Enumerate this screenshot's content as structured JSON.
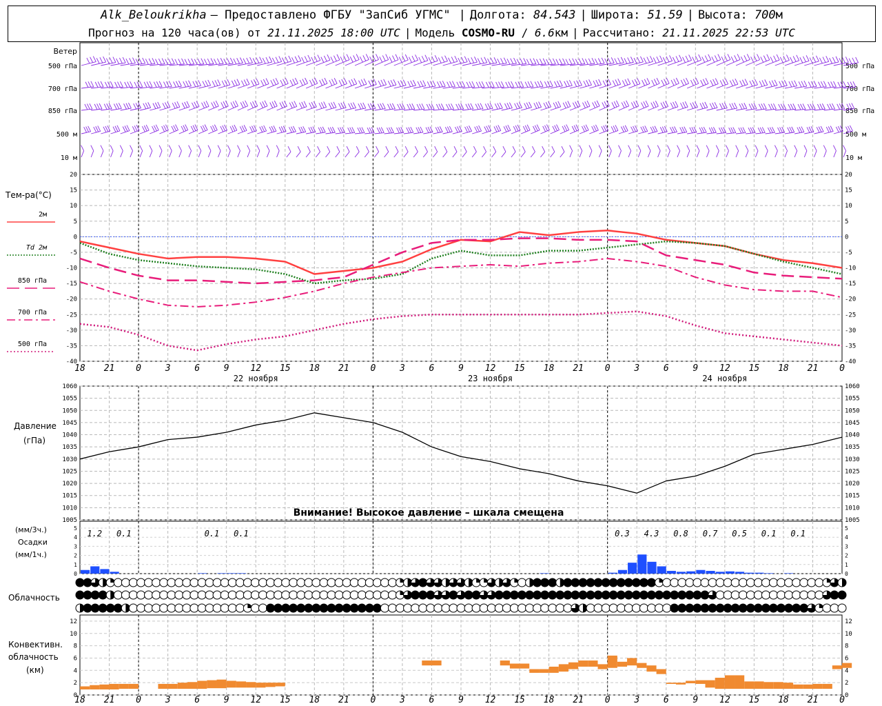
{
  "header": {
    "station": "Alk_Beloukrikha",
    "provider": "– Предоставлено ФГБУ \"ЗапСиб УГМС\"",
    "lon_label": "Долгота:",
    "lon_value": "84.543",
    "lat_label": "Широта:",
    "lat_value": "51.59",
    "alt_label": "Высота:",
    "alt_value": "700",
    "alt_unit": "м",
    "forecast_label": "Прогноз на 120 часа(ов) от",
    "forecast_start": "21.11.2025 18:00 UTC",
    "model_label": "Модель",
    "model_name": "COSMO-RU",
    "model_res": "6.6",
    "model_res_unit": "км",
    "calc_label": "Рассчитано:",
    "calc_time": "21.11.2025 22:53 UTC"
  },
  "colors": {
    "t2m": "#ff4040",
    "td2m": "#208020",
    "t850": "#e81c7a",
    "t700": "#e81c7a",
    "t500": "#d0187a",
    "wind": "#8a2be2",
    "pressure": "#000000",
    "precip": "#1e4fff",
    "conv": "#f08a30",
    "zero_line": "#4060ff"
  },
  "chart_data": [
    {
      "type": "line",
      "panel": "wind",
      "title": "Ветер",
      "levels": [
        "500 гПа",
        "700 гПа",
        "850 гПа",
        "500 м",
        "10 м"
      ]
    },
    {
      "type": "line",
      "panel": "temperature",
      "ylabel": "Тем-ра(°С)",
      "ylim": [
        -40,
        20
      ],
      "yticks": [
        20,
        15,
        10,
        5,
        0,
        -5,
        -10,
        -15,
        -20,
        -25,
        -30,
        -35,
        -40
      ],
      "x_hours": [
        0,
        3,
        6,
        9,
        12,
        15,
        18,
        21,
        24,
        27,
        30,
        33,
        36,
        39,
        42,
        45,
        48,
        51,
        54,
        57,
        60,
        63,
        66,
        69,
        72,
        75,
        78
      ],
      "xtick_labels": [
        "18",
        "21",
        "0",
        "3",
        "6",
        "9",
        "12",
        "15",
        "18",
        "21",
        "0",
        "3",
        "6",
        "9",
        "12",
        "15",
        "18",
        "21",
        "0",
        "3",
        "6",
        "9",
        "12",
        "15",
        "18",
        "21",
        "0"
      ],
      "day_labels": [
        {
          "hour": 18,
          "text": "22 ноября"
        },
        {
          "hour": 42,
          "text": "23 ноября"
        },
        {
          "hour": 66,
          "text": "24 ноября"
        }
      ],
      "series": [
        {
          "name": "2м",
          "style": "solid",
          "values": [
            -1.5,
            -3.5,
            -5.5,
            -7,
            -6.5,
            -6.5,
            -7,
            -8,
            -12,
            -11,
            -10,
            -8,
            -4,
            -1,
            -1.5,
            1.5,
            0.5,
            1.5,
            2,
            1,
            -1,
            -2,
            -3,
            -5.5,
            -7.5,
            -8.5,
            -10
          ]
        },
        {
          "name": "Td 2м",
          "style": "dotted",
          "values": [
            -2,
            -5.5,
            -7.5,
            -8.5,
            -9.5,
            -10,
            -10.5,
            -12,
            -15,
            -14,
            -13.5,
            -12,
            -7,
            -4.5,
            -6,
            -6,
            -4.5,
            -4.5,
            -3.5,
            -2.5,
            -1.5,
            -2,
            -3,
            -5.5,
            -8,
            -10,
            -12
          ]
        },
        {
          "name": "850 гПа",
          "style": "dash",
          "values": [
            -7,
            -10,
            -12.5,
            -14,
            -14,
            -14.5,
            -15,
            -14.5,
            -14,
            -13,
            -9,
            -5,
            -2,
            -1,
            -1,
            -0.5,
            -0.5,
            -1,
            -1,
            -1.5,
            -6,
            -7.5,
            -9,
            -11.5,
            -12.5,
            -13,
            -13.5
          ]
        },
        {
          "name": "700 гПа",
          "style": "dashdot",
          "values": [
            -14.5,
            -17.5,
            -20,
            -22,
            -22.5,
            -22,
            -21,
            -19.5,
            -17.5,
            -15,
            -13,
            -11.5,
            -10,
            -9.5,
            -9,
            -9.5,
            -8.5,
            -8,
            -7,
            -8,
            -9.5,
            -13,
            -15.5,
            -17,
            -17.5,
            -17.5,
            -19.5
          ]
        },
        {
          "name": "500 гПа",
          "style": "dots",
          "values": [
            -28,
            -29,
            -31.5,
            -35,
            -36.5,
            -34.5,
            -33,
            -32,
            -30,
            -28,
            -26.5,
            -25.5,
            -25,
            -25,
            -25,
            -25,
            -25,
            -25,
            -24.5,
            -24,
            -25.5,
            -28.5,
            -31,
            -32,
            -33,
            -34,
            -35
          ]
        }
      ]
    },
    {
      "type": "line",
      "panel": "pressure",
      "ylabel": "Давление",
      "yunit": "(гПа)",
      "ylim": [
        1005,
        1060
      ],
      "yticks": [
        1060,
        1055,
        1050,
        1045,
        1040,
        1035,
        1030,
        1025,
        1020,
        1015,
        1010,
        1005
      ],
      "x_hours": [
        0,
        3,
        6,
        9,
        12,
        15,
        18,
        21,
        24,
        27,
        30,
        33,
        36,
        39,
        42,
        45,
        48,
        51,
        54,
        57,
        60,
        63,
        66,
        69,
        72,
        75,
        78
      ],
      "values": [
        1030,
        1033,
        1035,
        1038,
        1039,
        1041,
        1044,
        1046,
        1049,
        1047,
        1045,
        1041,
        1035,
        1031,
        1029,
        1026,
        1024,
        1021,
        1019,
        1016,
        1021,
        1023,
        1027,
        1032,
        1034,
        1036,
        1039
      ],
      "annotation": "Внимание! Высокое давление – шкала смещена"
    },
    {
      "type": "bar",
      "panel": "precipitation",
      "ylabel": "Осадки",
      "yunit_3h": "(мм/3ч.)",
      "yunit_1h": "(мм/1ч.)",
      "ylim": [
        0,
        5
      ],
      "totals_3h": [
        {
          "hour": 1.5,
          "text": "1.2"
        },
        {
          "hour": 4.5,
          "text": "0.1"
        },
        {
          "hour": 13.5,
          "text": "0.1"
        },
        {
          "hour": 16.5,
          "text": "0.1"
        },
        {
          "hour": 55.5,
          "text": "0.3"
        },
        {
          "hour": 58.5,
          "text": "4.3"
        },
        {
          "hour": 61.5,
          "text": "0.8"
        },
        {
          "hour": 64.5,
          "text": "0.7"
        },
        {
          "hour": 67.5,
          "text": "0.5"
        },
        {
          "hour": 70.5,
          "text": "0.1"
        },
        {
          "hour": 73.5,
          "text": "0.1"
        }
      ],
      "hourly": [
        {
          "hour": 0,
          "value": 0.4
        },
        {
          "hour": 1,
          "value": 0.8
        },
        {
          "hour": 2,
          "value": 0.5
        },
        {
          "hour": 3,
          "value": 0.2
        },
        {
          "hour": 12,
          "value": 0.05
        },
        {
          "hour": 14,
          "value": 0.05
        },
        {
          "hour": 15,
          "value": 0.05
        },
        {
          "hour": 16,
          "value": 0.05
        },
        {
          "hour": 47,
          "value": 0.05
        },
        {
          "hour": 54,
          "value": 0.1
        },
        {
          "hour": 55,
          "value": 0.4
        },
        {
          "hour": 56,
          "value": 1.2
        },
        {
          "hour": 57,
          "value": 2.1
        },
        {
          "hour": 58,
          "value": 1.3
        },
        {
          "hour": 59,
          "value": 0.8
        },
        {
          "hour": 60,
          "value": 0.3
        },
        {
          "hour": 61,
          "value": 0.2
        },
        {
          "hour": 62,
          "value": 0.25
        },
        {
          "hour": 63,
          "value": 0.4
        },
        {
          "hour": 64,
          "value": 0.3
        },
        {
          "hour": 65,
          "value": 0.2
        },
        {
          "hour": 66,
          "value": 0.25
        },
        {
          "hour": 67,
          "value": 0.2
        },
        {
          "hour": 68,
          "value": 0.1
        },
        {
          "hour": 69,
          "value": 0.1
        },
        {
          "hour": 70,
          "value": 0.05
        },
        {
          "hour": 72,
          "value": 0.05
        }
      ]
    },
    {
      "type": "table",
      "panel": "cloudiness",
      "ylabel": "Облачность",
      "rows": 3,
      "cover_upper": [
        8,
        8,
        6,
        4,
        2,
        0,
        0,
        0,
        0,
        0,
        0,
        0,
        0,
        0,
        0,
        0,
        0,
        0,
        0,
        0,
        0,
        0,
        0,
        0,
        0,
        0,
        0,
        0,
        0,
        0,
        0,
        0,
        0,
        0,
        0,
        0,
        0,
        0,
        0,
        0,
        0,
        0,
        2,
        4,
        6,
        8,
        6,
        6,
        4,
        6,
        6,
        4,
        2,
        2,
        6,
        4,
        6,
        2,
        0,
        4,
        8,
        8,
        8,
        4,
        8,
        8,
        8,
        8,
        8,
        8,
        8,
        8,
        8,
        8,
        8,
        8,
        2,
        0,
        0,
        0,
        0,
        0,
        0,
        0,
        0,
        0,
        0,
        0,
        0,
        0,
        0,
        0,
        0,
        0,
        0,
        0,
        0,
        0,
        2,
        6,
        4
      ],
      "cover_mid": [
        8,
        8,
        8,
        8,
        4,
        0,
        0,
        0,
        0,
        0,
        0,
        0,
        0,
        0,
        0,
        0,
        0,
        0,
        0,
        0,
        0,
        0,
        0,
        0,
        0,
        0,
        0,
        0,
        0,
        0,
        0,
        0,
        0,
        0,
        0,
        0,
        0,
        0,
        0,
        0,
        0,
        0,
        2,
        6,
        8,
        8,
        8,
        6,
        6,
        8,
        6,
        8,
        8,
        6,
        6,
        8,
        8,
        8,
        8,
        8,
        8,
        8,
        8,
        8,
        8,
        8,
        8,
        8,
        8,
        8,
        8,
        8,
        8,
        8,
        8,
        8,
        8,
        8,
        8,
        8,
        8,
        8,
        8,
        6,
        0,
        0,
        0,
        0,
        0,
        0,
        0,
        0,
        0,
        0,
        0,
        0,
        0,
        0,
        6,
        8,
        8
      ],
      "cover_low": [
        4,
        8,
        8,
        8,
        8,
        8,
        4,
        0,
        0,
        0,
        0,
        0,
        0,
        0,
        0,
        0,
        0,
        0,
        0,
        0,
        0,
        0,
        2,
        0,
        0,
        8,
        8,
        8,
        8,
        8,
        8,
        8,
        8,
        8,
        8,
        8,
        8,
        8,
        8,
        8,
        0,
        0,
        0,
        0,
        0,
        0,
        0,
        0,
        0,
        0,
        0,
        0,
        0,
        0,
        0,
        0,
        0,
        0,
        0,
        0,
        0,
        0,
        0,
        0,
        0,
        6,
        4,
        0,
        0,
        0,
        0,
        0,
        0,
        0,
        0,
        0,
        0,
        0,
        8,
        8,
        8,
        8,
        8,
        8,
        8,
        8,
        8,
        8,
        8,
        8,
        8,
        8,
        8,
        8,
        8,
        8,
        6,
        2,
        0,
        0,
        0
      ]
    },
    {
      "type": "bar",
      "panel": "convective",
      "ylabel": "Конвективн.",
      "ylabel2": "облачность",
      "yunit": "(км)",
      "ylim": [
        0,
        13
      ],
      "yticks": [
        12,
        10,
        8,
        6,
        4,
        2,
        0
      ],
      "segments": [
        {
          "hour": 0,
          "bottom": 0.9,
          "top": 1.4
        },
        {
          "hour": 1,
          "bottom": 0.9,
          "top": 1.6
        },
        {
          "hour": 2,
          "bottom": 0.9,
          "top": 1.7
        },
        {
          "hour": 3,
          "bottom": 0.9,
          "top": 1.8
        },
        {
          "hour": 4,
          "bottom": 1.0,
          "top": 1.8
        },
        {
          "hour": 5,
          "bottom": 1.0,
          "top": 1.8
        },
        {
          "hour": 8,
          "bottom": 1.0,
          "top": 1.8
        },
        {
          "hour": 9,
          "bottom": 1.0,
          "top": 1.8
        },
        {
          "hour": 10,
          "bottom": 1.0,
          "top": 2.0
        },
        {
          "hour": 11,
          "bottom": 1.0,
          "top": 2.1
        },
        {
          "hour": 12,
          "bottom": 1.0,
          "top": 2.3
        },
        {
          "hour": 13,
          "bottom": 1.1,
          "top": 2.4
        },
        {
          "hour": 14,
          "bottom": 1.1,
          "top": 2.5
        },
        {
          "hour": 15,
          "bottom": 1.2,
          "top": 2.3
        },
        {
          "hour": 16,
          "bottom": 1.2,
          "top": 2.2
        },
        {
          "hour": 17,
          "bottom": 1.2,
          "top": 2.1
        },
        {
          "hour": 18,
          "bottom": 1.2,
          "top": 2.0
        },
        {
          "hour": 19,
          "bottom": 1.3,
          "top": 2.0
        },
        {
          "hour": 20,
          "bottom": 1.4,
          "top": 2.0
        },
        {
          "hour": 35,
          "bottom": 4.8,
          "top": 5.6
        },
        {
          "hour": 36,
          "bottom": 4.8,
          "top": 5.6
        },
        {
          "hour": 43,
          "bottom": 4.8,
          "top": 5.6
        },
        {
          "hour": 44,
          "bottom": 4.3,
          "top": 5.1
        },
        {
          "hour": 45,
          "bottom": 4.3,
          "top": 5.1
        },
        {
          "hour": 46,
          "bottom": 3.6,
          "top": 4.2
        },
        {
          "hour": 47,
          "bottom": 3.6,
          "top": 4.2
        },
        {
          "hour": 48,
          "bottom": 3.6,
          "top": 4.6
        },
        {
          "hour": 49,
          "bottom": 3.8,
          "top": 5.0
        },
        {
          "hour": 50,
          "bottom": 4.2,
          "top": 5.3
        },
        {
          "hour": 51,
          "bottom": 4.6,
          "top": 5.6
        },
        {
          "hour": 52,
          "bottom": 4.6,
          "top": 5.6
        },
        {
          "hour": 53,
          "bottom": 4.2,
          "top": 5.0
        },
        {
          "hour": 54,
          "bottom": 4.4,
          "top": 6.4
        },
        {
          "hour": 55,
          "bottom": 4.6,
          "top": 5.4
        },
        {
          "hour": 56,
          "bottom": 4.8,
          "top": 6.0
        },
        {
          "hour": 57,
          "bottom": 4.4,
          "top": 5.2
        },
        {
          "hour": 58,
          "bottom": 3.8,
          "top": 4.8
        },
        {
          "hour": 59,
          "bottom": 3.4,
          "top": 4.2
        },
        {
          "hour": 60,
          "bottom": 1.8,
          "top": 2.0
        },
        {
          "hour": 61,
          "bottom": 1.7,
          "top": 2.0
        },
        {
          "hour": 62,
          "bottom": 1.9,
          "top": 2.3
        },
        {
          "hour": 63,
          "bottom": 1.8,
          "top": 2.4
        },
        {
          "hour": 64,
          "bottom": 1.2,
          "top": 2.4
        },
        {
          "hour": 65,
          "bottom": 1.0,
          "top": 2.8
        },
        {
          "hour": 66,
          "bottom": 1.0,
          "top": 3.2
        },
        {
          "hour": 67,
          "bottom": 1.0,
          "top": 3.2
        },
        {
          "hour": 68,
          "bottom": 1.0,
          "top": 2.2
        },
        {
          "hour": 69,
          "bottom": 1.0,
          "top": 2.2
        },
        {
          "hour": 70,
          "bottom": 1.0,
          "top": 2.1
        },
        {
          "hour": 71,
          "bottom": 1.0,
          "top": 2.1
        },
        {
          "hour": 72,
          "bottom": 1.0,
          "top": 2.0
        },
        {
          "hour": 73,
          "bottom": 1.0,
          "top": 1.7
        },
        {
          "hour": 74,
          "bottom": 1.0,
          "top": 1.7
        },
        {
          "hour": 75,
          "bottom": 1.0,
          "top": 1.8
        },
        {
          "hour": 76,
          "bottom": 1.0,
          "top": 1.8
        },
        {
          "hour": 77,
          "bottom": 4.2,
          "top": 4.8
        },
        {
          "hour": 78,
          "bottom": 4.4,
          "top": 5.2
        }
      ]
    }
  ]
}
